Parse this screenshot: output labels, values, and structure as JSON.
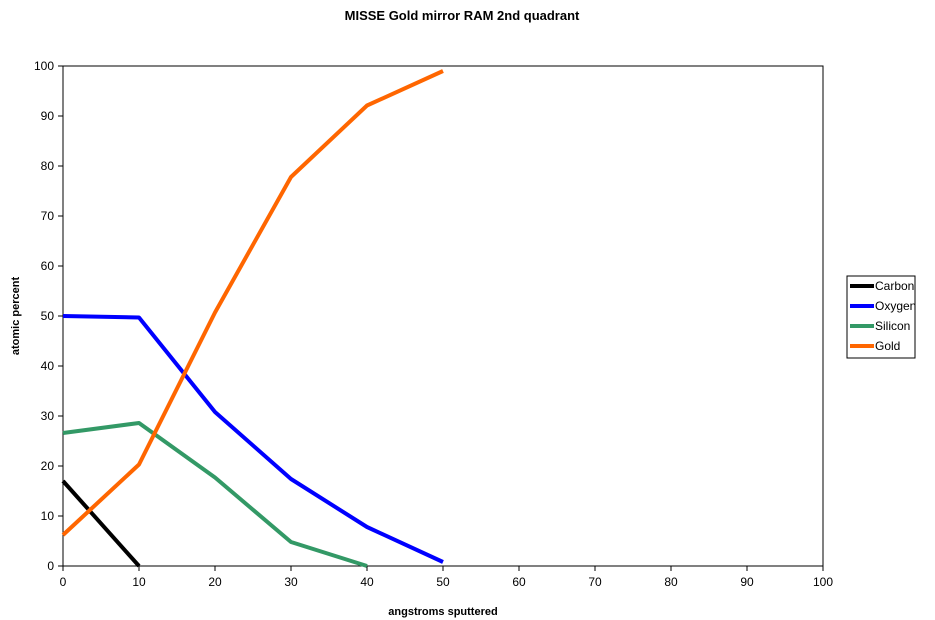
{
  "chart_data": {
    "type": "line",
    "title": "MISSE Gold mirror RAM 2nd quadrant",
    "xlabel": "angstroms sputtered",
    "ylabel": "atomic percent",
    "xlim": [
      0,
      100
    ],
    "ylim": [
      0,
      100
    ],
    "x_ticks": [
      0,
      10,
      20,
      30,
      40,
      50,
      60,
      70,
      80,
      90,
      100
    ],
    "y_ticks": [
      0,
      10,
      20,
      30,
      40,
      50,
      60,
      70,
      80,
      90,
      100
    ],
    "grid": false,
    "legend_position": "right",
    "series": [
      {
        "name": "Carbon",
        "color": "#000000",
        "x": [
          0,
          10
        ],
        "y": [
          17,
          0
        ]
      },
      {
        "name": "Oxygen",
        "color": "#0000ff",
        "x": [
          0,
          10,
          20,
          30,
          40,
          50
        ],
        "y": [
          50,
          49.7,
          30.8,
          17.4,
          7.8,
          0.8
        ]
      },
      {
        "name": "Silicon",
        "color": "#339966",
        "x": [
          0,
          10,
          20,
          30,
          40
        ],
        "y": [
          26.6,
          28.6,
          17.7,
          4.8,
          0
        ]
      },
      {
        "name": "Gold",
        "color": "#ff6600",
        "x": [
          0,
          10,
          20,
          30,
          40,
          50
        ],
        "y": [
          6.2,
          20.3,
          50.7,
          77.8,
          92.1,
          99
        ]
      }
    ]
  }
}
